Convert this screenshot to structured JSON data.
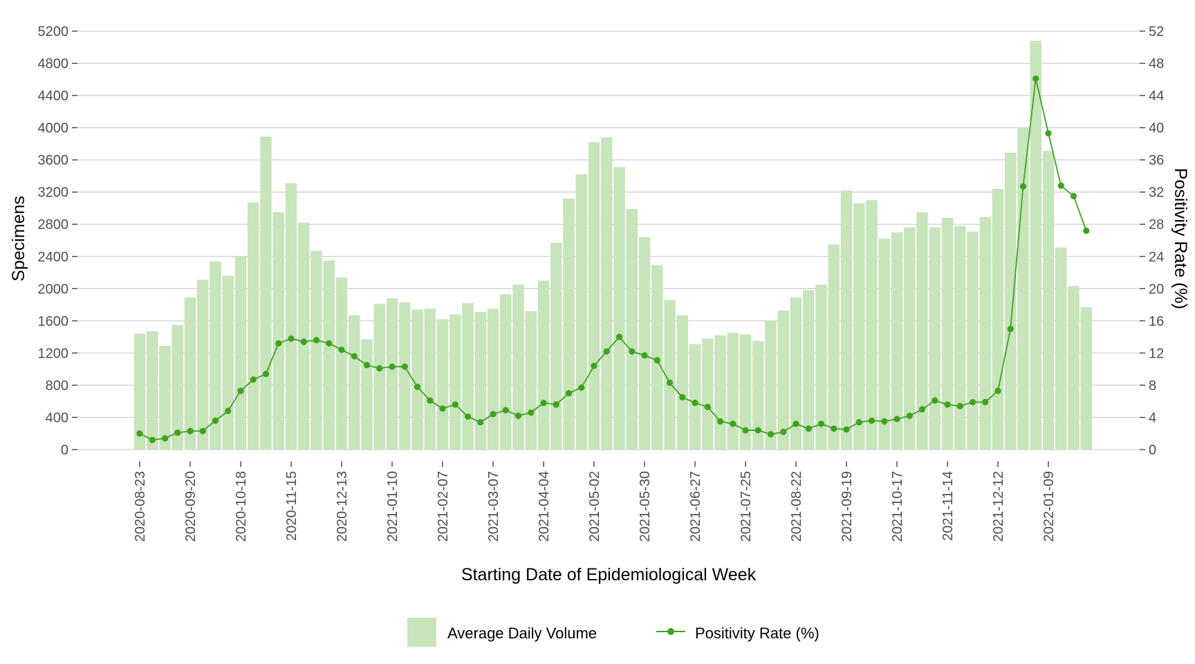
{
  "chart_data": {
    "type": "bar+line",
    "xlabel": "Starting Date of Epidemiological Week",
    "ylabel_left": "Specimens",
    "ylabel_right": "Positivity Rate (%)",
    "ylim_left": [
      0,
      5200
    ],
    "ylim_right": [
      0,
      52
    ],
    "yticks_left": [
      "0",
      "400",
      "800",
      "1200",
      "1600",
      "2000",
      "2400",
      "2800",
      "3200",
      "3600",
      "4000",
      "4400",
      "4800",
      "5200"
    ],
    "yticks_right": [
      "0",
      "4",
      "8",
      "12",
      "16",
      "20",
      "24",
      "28",
      "32",
      "36",
      "40",
      "44",
      "48",
      "52"
    ],
    "x_tick_labels": [
      "2020-08-23",
      "2020-09-20",
      "2020-10-18",
      "2020-11-15",
      "2020-12-13",
      "2021-01-10",
      "2021-02-07",
      "2021-03-07",
      "2021-04-04",
      "2021-05-02",
      "2021-05-30",
      "2021-06-27",
      "2021-07-25",
      "2021-08-22",
      "2021-09-19",
      "2021-10-17",
      "2021-11-14",
      "2021-12-12",
      "2022-01-09"
    ],
    "grid": true,
    "legend_position": "bottom",
    "colors": {
      "bar": "#c7e4bb",
      "line": "#3fa21f",
      "grid": "#d0d0d0"
    },
    "series": [
      {
        "name": "Average Daily Volume",
        "type": "bar",
        "axis": "left",
        "values": [
          1440,
          1470,
          1290,
          1550,
          1890,
          2110,
          2340,
          2160,
          2400,
          3070,
          3890,
          2950,
          3310,
          2820,
          2470,
          2350,
          2140,
          1670,
          1370,
          1810,
          1880,
          1830,
          1740,
          1750,
          1620,
          1680,
          1820,
          1710,
          1750,
          1930,
          2050,
          1720,
          2100,
          2570,
          3120,
          3420,
          3820,
          3880,
          3510,
          2990,
          2640,
          2290,
          1860,
          1670,
          1310,
          1380,
          1420,
          1450,
          1430,
          1350,
          1600,
          1730,
          1890,
          1980,
          2050,
          2550,
          3220,
          3060,
          3100,
          2620,
          2700,
          2760,
          2950,
          2760,
          2880,
          2780,
          2710,
          2890,
          3240,
          3690,
          4000,
          5080,
          3710,
          2510,
          2030,
          1770
        ]
      },
      {
        "name": "Positivity Rate (%)",
        "type": "line",
        "axis": "right",
        "values": [
          2.0,
          1.2,
          1.4,
          2.1,
          2.3,
          2.3,
          3.6,
          4.8,
          7.3,
          8.7,
          9.4,
          13.2,
          13.8,
          13.4,
          13.6,
          13.2,
          12.4,
          11.6,
          10.5,
          10.1,
          10.3,
          10.3,
          7.8,
          6.1,
          5.1,
          5.6,
          4.1,
          3.4,
          4.4,
          4.9,
          4.2,
          4.6,
          5.8,
          5.6,
          7.0,
          7.7,
          10.4,
          12.2,
          14.0,
          12.2,
          11.7,
          11.1,
          8.3,
          6.5,
          5.8,
          5.3,
          3.5,
          3.2,
          2.4,
          2.4,
          1.9,
          2.2,
          3.2,
          2.6,
          3.2,
          2.6,
          2.5,
          3.4,
          3.6,
          3.5,
          3.8,
          4.2,
          5.0,
          6.1,
          5.6,
          5.4,
          5.9,
          5.9,
          7.3,
          15.0,
          32.7,
          46.1,
          39.3,
          32.8,
          31.5,
          27.2
        ]
      }
    ]
  }
}
